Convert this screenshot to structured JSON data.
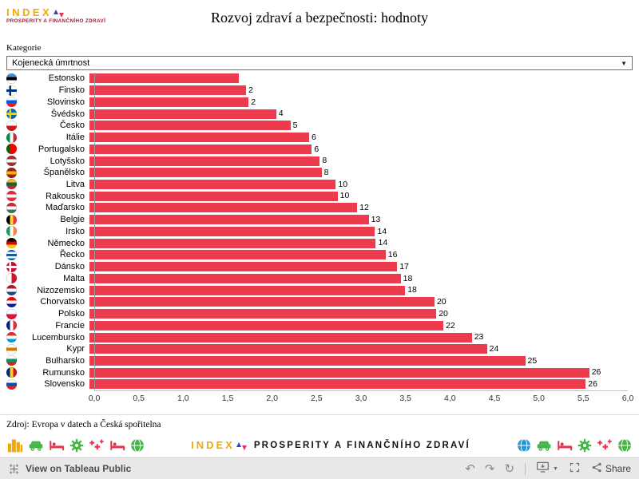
{
  "header": {
    "logo": {
      "word": "INDEX",
      "subtitle": "PROSPERITY A FINANČNÍHO ZDRAVÍ"
    }
  },
  "filter": {
    "label": "Kategorie",
    "selected": "Kojenecká úmrtnost"
  },
  "chart_data": {
    "type": "bar",
    "orientation": "horizontal",
    "title": "Rozvoj zdraví a bezpečnosti: hodnoty",
    "bar_color": "#ee3a4d",
    "value_axis": {
      "min": 0,
      "max": 6,
      "ticks": [
        "0,0",
        "0,5",
        "1,0",
        "1,5",
        "2,0",
        "2,5",
        "3,0",
        "3,5",
        "4,0",
        "4,5",
        "5,0",
        "5,5",
        "6,0"
      ]
    },
    "rows": [
      {
        "country": "Estonsko",
        "value": 1.68,
        "rank_label": "",
        "flag": {
          "dir": "h",
          "colors": [
            "#4891d9",
            "#000000",
            "#ffffff"
          ]
        }
      },
      {
        "country": "Finsko",
        "value": 1.76,
        "rank_label": "2",
        "flag": {
          "bg": "#ffffff",
          "cross": "#003580"
        }
      },
      {
        "country": "Slovinsko",
        "value": 1.79,
        "rank_label": "2",
        "flag": {
          "dir": "h",
          "colors": [
            "#ffffff",
            "#005ce5",
            "#ed1c24"
          ]
        }
      },
      {
        "country": "Švédsko",
        "value": 2.1,
        "rank_label": "4",
        "flag": {
          "bg": "#006aa7",
          "cross": "#fecc00"
        }
      },
      {
        "country": "Česko",
        "value": 2.26,
        "rank_label": "5",
        "flag": {
          "dir": "h",
          "colors": [
            "#ffffff",
            "#d7141a"
          ]
        }
      },
      {
        "country": "Itálie",
        "value": 2.47,
        "rank_label": "6",
        "flag": {
          "dir": "v",
          "colors": [
            "#009246",
            "#ffffff",
            "#ce2b37"
          ]
        }
      },
      {
        "country": "Portugalsko",
        "value": 2.5,
        "rank_label": "6",
        "flag": {
          "dir": "v",
          "colors": [
            "#006600",
            "#ff0000",
            "#ff0000"
          ]
        }
      },
      {
        "country": "Lotyšsko",
        "value": 2.59,
        "rank_label": "8",
        "flag": {
          "dir": "h",
          "colors": [
            "#9e3039",
            "#ffffff",
            "#9e3039"
          ]
        }
      },
      {
        "country": "Španělsko",
        "value": 2.61,
        "rank_label": "8",
        "flag": {
          "dir": "h",
          "colors": [
            "#aa151b",
            "#f1bf00",
            "#aa151b"
          ]
        }
      },
      {
        "country": "Litva",
        "value": 2.77,
        "rank_label": "10",
        "flag": {
          "dir": "h",
          "colors": [
            "#fdb913",
            "#006a44",
            "#c1272d"
          ]
        }
      },
      {
        "country": "Rakousko",
        "value": 2.79,
        "rank_label": "10",
        "flag": {
          "dir": "h",
          "colors": [
            "#ed2939",
            "#ffffff",
            "#ed2939"
          ]
        }
      },
      {
        "country": "Maďarsko",
        "value": 3.01,
        "rank_label": "12",
        "flag": {
          "dir": "h",
          "colors": [
            "#ce2939",
            "#ffffff",
            "#477050"
          ]
        }
      },
      {
        "country": "Belgie",
        "value": 3.14,
        "rank_label": "13",
        "flag": {
          "dir": "v",
          "colors": [
            "#000000",
            "#fdda24",
            "#ef3340"
          ]
        }
      },
      {
        "country": "Irsko",
        "value": 3.21,
        "rank_label": "14",
        "flag": {
          "dir": "v",
          "colors": [
            "#169b62",
            "#ffffff",
            "#ff883e"
          ]
        }
      },
      {
        "country": "Německo",
        "value": 3.22,
        "rank_label": "14",
        "flag": {
          "dir": "h",
          "colors": [
            "#000000",
            "#dd0000",
            "#ffce00"
          ]
        }
      },
      {
        "country": "Řecko",
        "value": 3.33,
        "rank_label": "16",
        "flag": {
          "dir": "h",
          "colors": [
            "#0d5eaf",
            "#ffffff",
            "#0d5eaf",
            "#ffffff",
            "#0d5eaf"
          ]
        }
      },
      {
        "country": "Dánsko",
        "value": 3.46,
        "rank_label": "17",
        "flag": {
          "bg": "#c8102e",
          "cross": "#ffffff"
        }
      },
      {
        "country": "Malta",
        "value": 3.5,
        "rank_label": "18",
        "flag": {
          "dir": "v",
          "colors": [
            "#ffffff",
            "#cf142b"
          ]
        }
      },
      {
        "country": "Nizozemsko",
        "value": 3.55,
        "rank_label": "18",
        "flag": {
          "dir": "h",
          "colors": [
            "#ae1c28",
            "#ffffff",
            "#21468b"
          ]
        }
      },
      {
        "country": "Chorvatsko",
        "value": 3.88,
        "rank_label": "20",
        "flag": {
          "dir": "h",
          "colors": [
            "#ff0000",
            "#ffffff",
            "#171796"
          ]
        }
      },
      {
        "country": "Polsko",
        "value": 3.9,
        "rank_label": "20",
        "flag": {
          "dir": "h",
          "colors": [
            "#ffffff",
            "#dc143c"
          ]
        }
      },
      {
        "country": "Francie",
        "value": 3.98,
        "rank_label": "22",
        "flag": {
          "dir": "v",
          "colors": [
            "#002395",
            "#ffffff",
            "#ed2939"
          ]
        }
      },
      {
        "country": "Lucembursko",
        "value": 4.3,
        "rank_label": "23",
        "flag": {
          "dir": "h",
          "colors": [
            "#ed2939",
            "#ffffff",
            "#00a1de"
          ]
        }
      },
      {
        "country": "Kypr",
        "value": 4.47,
        "rank_label": "24",
        "flag": {
          "dir": "h",
          "colors": [
            "#ffffff",
            "#d57800",
            "#ffffff"
          ]
        }
      },
      {
        "country": "Bulharsko",
        "value": 4.9,
        "rank_label": "25",
        "flag": {
          "dir": "h",
          "colors": [
            "#ffffff",
            "#00966e",
            "#d62612"
          ]
        }
      },
      {
        "country": "Rumunsko",
        "value": 5.62,
        "rank_label": "26",
        "flag": {
          "dir": "v",
          "colors": [
            "#002b7f",
            "#fcd116",
            "#ce1126"
          ]
        }
      },
      {
        "country": "Slovensko",
        "value": 5.58,
        "rank_label": "26",
        "flag": {
          "dir": "h",
          "colors": [
            "#ffffff",
            "#0b4ea2",
            "#ee1c25"
          ]
        }
      }
    ]
  },
  "source": "Zdroj: Evropa v datech a Česká spořitelna",
  "footer_band": {
    "logo_word": "INDEX",
    "logo_subtitle": "PROSPERITY A FINANČNÍHO ZDRAVÍ",
    "left_icons": [
      {
        "name": "city-icon",
        "color": "#f2a900"
      },
      {
        "name": "car-icon",
        "color": "#45b649"
      },
      {
        "name": "bed-icon",
        "color": "#e8334a"
      },
      {
        "name": "gear-icon",
        "color": "#45b649"
      },
      {
        "name": "crosses-icon",
        "color": "#e8334a"
      },
      {
        "name": "bed-icon",
        "color": "#e8334a"
      },
      {
        "name": "globe-icon",
        "color": "#45b649"
      }
    ],
    "right_icons": [
      {
        "name": "globe-icon",
        "color": "#2196d9"
      },
      {
        "name": "car-icon",
        "color": "#45b649"
      },
      {
        "name": "bed-icon",
        "color": "#e8334a"
      },
      {
        "name": "gear-icon",
        "color": "#45b649"
      },
      {
        "name": "crosses-icon",
        "color": "#e8334a"
      },
      {
        "name": "globe-icon",
        "color": "#45b649"
      }
    ]
  },
  "toolbar": {
    "view_label": "View on Tableau Public",
    "share_label": "Share",
    "history_icons": [
      "undo-icon",
      "redo-icon",
      "replay-icon"
    ],
    "action_icons": [
      "download-icon",
      "fullscreen-icon",
      "share-icon"
    ]
  }
}
